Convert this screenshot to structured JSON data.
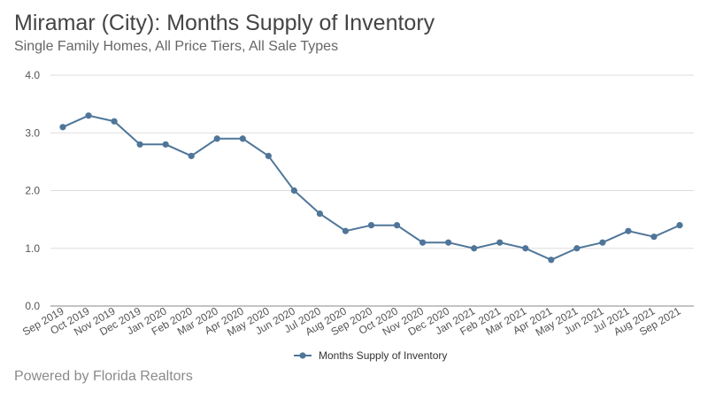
{
  "title": "Miramar (City): Months Supply of Inventory",
  "subtitle": "Single Family Homes, All Price Tiers, All Sale Types",
  "footer": "Powered by Florida Realtors",
  "chart_data": {
    "type": "line",
    "categories": [
      "Sep 2019",
      "Oct 2019",
      "Nov 2019",
      "Dec 2019",
      "Jan 2020",
      "Feb 2020",
      "Mar 2020",
      "Apr 2020",
      "May 2020",
      "Jun 2020",
      "Jul 2020",
      "Aug 2020",
      "Sep 2020",
      "Oct 2020",
      "Nov 2020",
      "Dec 2020",
      "Jan 2021",
      "Feb 2021",
      "Mar 2021",
      "Apr 2021",
      "May 2021",
      "Jun 2021",
      "Jul 2021",
      "Aug 2021",
      "Sep 2021"
    ],
    "series": [
      {
        "name": "Months Supply of Inventory",
        "color": "#4f7699",
        "values": [
          3.1,
          3.3,
          3.2,
          2.8,
          2.8,
          2.6,
          2.9,
          2.9,
          2.6,
          2.0,
          1.6,
          1.3,
          1.4,
          1.4,
          1.1,
          1.1,
          1.0,
          1.1,
          1.0,
          0.8,
          1.0,
          1.1,
          1.3,
          1.2,
          1.4
        ]
      }
    ],
    "y_ticks": [
      "0.0",
      "1.0",
      "2.0",
      "3.0",
      "4.0"
    ],
    "ylim": [
      0,
      4
    ],
    "grid": true,
    "legend_position": "bottom-center"
  }
}
